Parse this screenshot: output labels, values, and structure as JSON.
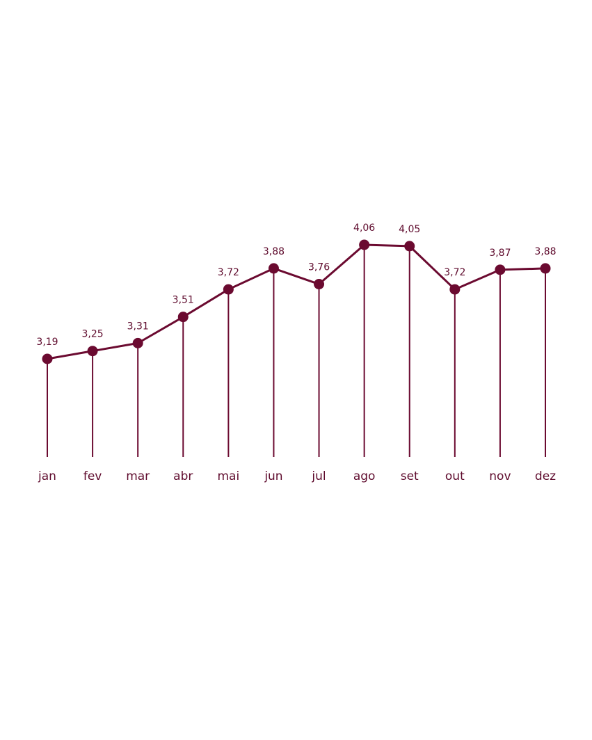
{
  "chart_data": {
    "type": "line",
    "categories": [
      "jan",
      "fev",
      "mar",
      "abr",
      "mai",
      "jun",
      "jul",
      "ago",
      "set",
      "out",
      "nov",
      "dez"
    ],
    "values": [
      3.19,
      3.25,
      3.31,
      3.51,
      3.72,
      3.88,
      3.76,
      4.06,
      4.05,
      3.72,
      3.87,
      3.88
    ],
    "value_labels": [
      "3,19",
      "3,25",
      "3,31",
      "3,51",
      "3,72",
      "3,88",
      "3,76",
      "4,06",
      "4,05",
      "3,72",
      "3,87",
      "3,88"
    ],
    "color": "#6b0a30"
  }
}
